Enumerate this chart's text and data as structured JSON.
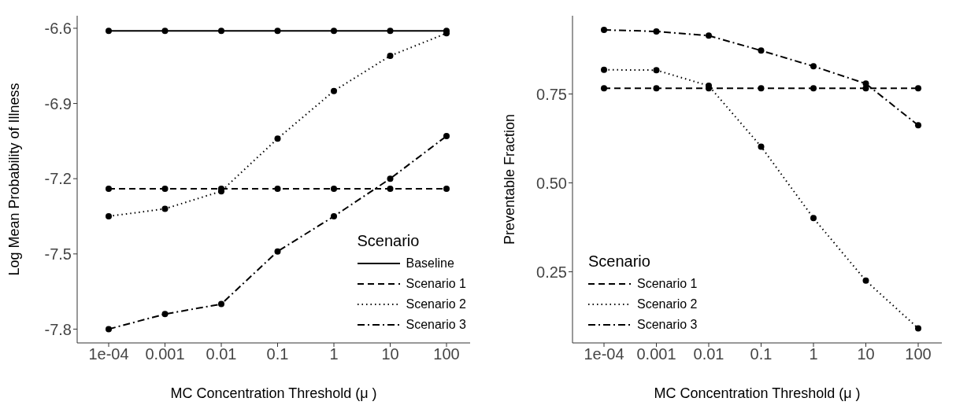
{
  "chart_data": [
    {
      "type": "line",
      "xlabel": "MC Concentration Threshold (μ )",
      "ylabel": "Log Mean Probability of Illness",
      "categories": [
        "1e-04",
        "0.001",
        "0.01",
        "0.1",
        "1",
        "10",
        "100"
      ],
      "ylim": [
        -7.855,
        -6.55
      ],
      "yticks": [
        -7.8,
        -7.5,
        -7.2,
        -6.9,
        -6.6
      ],
      "grid": false,
      "legend": "bottom right",
      "legend_title": "Scenario",
      "marker": "circle",
      "series": [
        {
          "name": "Baseline",
          "color": "#000000",
          "line_style": "solid",
          "values": [
            -6.61,
            -6.61,
            -6.61,
            -6.61,
            -6.61,
            -6.61,
            -6.61
          ]
        },
        {
          "name": "Scenario 1",
          "color": "#000000",
          "line_style": "dashed",
          "values": [
            -7.24,
            -7.24,
            -7.24,
            -7.24,
            -7.24,
            -7.24,
            -7.24
          ]
        },
        {
          "name": "Scenario 2",
          "color": "#000000",
          "line_style": "dotted",
          "values": [
            -7.35,
            -7.32,
            -7.25,
            -7.04,
            -6.85,
            -6.71,
            -6.62
          ]
        },
        {
          "name": "Scenario 3",
          "color": "#000000",
          "line_style": "dashdot",
          "values": [
            -7.8,
            -7.74,
            -7.7,
            -7.49,
            -7.35,
            -7.2,
            -7.03
          ]
        }
      ]
    },
    {
      "type": "line",
      "xlabel": "MC Concentration Threshold (μ )",
      "ylabel": "Preventable Fraction",
      "categories": [
        "1e-04",
        "0.001",
        "0.01",
        "0.1",
        "1",
        "10",
        "100"
      ],
      "ylim": [
        0.05,
        0.97
      ],
      "yticks": [
        {
          "value": 0.25,
          "label": "0.25"
        },
        {
          "value": 0.5,
          "label": "0.50"
        },
        {
          "value": 0.75,
          "label": "0.75"
        }
      ],
      "grid": false,
      "legend": "bottom left",
      "legend_title": "Scenario",
      "marker": "circle",
      "series": [
        {
          "name": "Scenario 1",
          "color": "#000000",
          "line_style": "dashed",
          "values": [
            0.766,
            0.766,
            0.766,
            0.766,
            0.766,
            0.766,
            0.766
          ]
        },
        {
          "name": "Scenario 2",
          "color": "#000000",
          "line_style": "dotted",
          "values": [
            0.818,
            0.817,
            0.773,
            0.602,
            0.401,
            0.225,
            0.091
          ]
        },
        {
          "name": "Scenario 3",
          "color": "#000000",
          "line_style": "dashdot",
          "values": [
            0.93,
            0.926,
            0.914,
            0.872,
            0.828,
            0.779,
            0.662
          ]
        }
      ]
    }
  ]
}
